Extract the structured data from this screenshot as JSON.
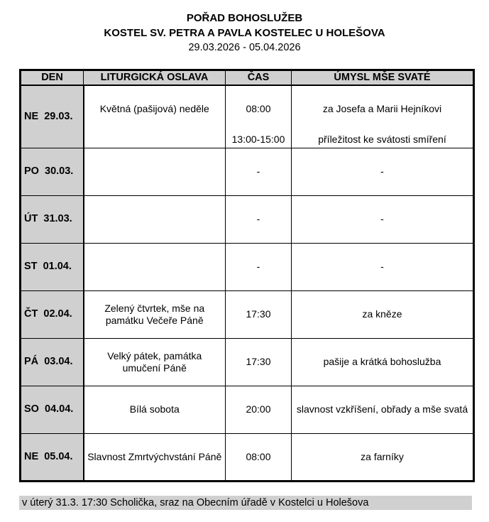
{
  "title": "POŘAD BOHOSLUŽEB",
  "subtitle": "KOSTEL SV. PETRA A PAVLA KOSTELEC U HOLEŠOVA",
  "date_range": "29.03.2026 - 05.04.2026",
  "columns": [
    "DEN",
    "LITURGICKÁ OSLAVA",
    "ČAS",
    "ÚMYSL MŠE SVATÉ"
  ],
  "rows": [
    {
      "day": "NE  29.03.",
      "celebration": "Květná (pašijová) neděle",
      "time": "08:00",
      "intention": "za Josefa a Marii Hejníkovi",
      "time2": "13:00-15:00",
      "intention2": "příležitost ke svátosti smíření"
    },
    {
      "day": "PO  30.03.",
      "celebration": "",
      "time": "-",
      "intention": "-"
    },
    {
      "day": "ÚT  31.03.",
      "celebration": "",
      "time": "-",
      "intention": "-"
    },
    {
      "day": "ST  01.04.",
      "celebration": "",
      "time": "-",
      "intention": "-"
    },
    {
      "day": "ČT  02.04.",
      "celebration": "Zelený čtvrtek, mše na památku Večeře Páně",
      "time": "17:30",
      "intention": "za kněze"
    },
    {
      "day": "PÁ  03.04.",
      "celebration": "Velký pátek, památka umučení Páně",
      "time": "17:30",
      "intention": "pašije a krátká bohoslužba"
    },
    {
      "day": "SO  04.04.",
      "celebration": "Bílá sobota",
      "time": "20:00",
      "intention": "slavnost vzkříšení, obřady a mše svatá"
    },
    {
      "day": "NE  05.04.",
      "celebration": "Slavnost Zmrtvýchvstání Páně",
      "time": "08:00",
      "intention": "za farníky"
    }
  ],
  "note": "v úterý 31.3. 17:30 Scholička,  sraz na Obecním úřadě v Kostelci u Holešova"
}
